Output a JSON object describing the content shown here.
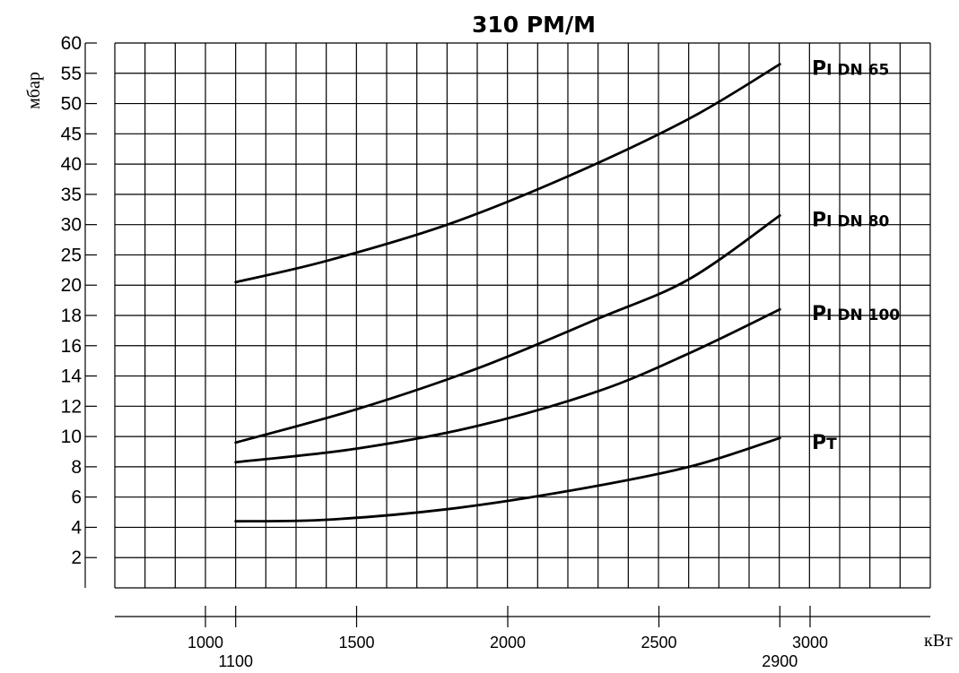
{
  "chart_data": {
    "type": "line",
    "title": "310 PM/M",
    "ylabel": "мбар",
    "xlabel": "кВт",
    "y_ticks_upper": [
      "60",
      "55",
      "50",
      "45",
      "40",
      "35",
      "30",
      "25",
      "20"
    ],
    "y_ticks_lower": [
      "18",
      "16",
      "14",
      "12",
      "10",
      "8",
      "6",
      "4",
      "2"
    ],
    "x_ticks": [
      "1000",
      "1500",
      "2000",
      "2500",
      "3000"
    ],
    "x_range_labels": [
      "1100",
      "2900"
    ],
    "x_range": [
      1100,
      2900
    ],
    "series": [
      {
        "name_main": "P",
        "name_sub": "I DN 65",
        "scale": "upper",
        "x": [
          1100,
          1400,
          1800,
          2200,
          2600,
          2900
        ],
        "y": [
          20.5,
          24,
          30,
          38,
          47.5,
          56.5
        ]
      },
      {
        "name_main": "P",
        "name_sub": "I DN 80",
        "scale": "mixed",
        "x": [
          1100,
          1500,
          1900,
          2300,
          2600,
          2900
        ],
        "y": [
          9.6,
          11.8,
          14.5,
          17.8,
          21,
          31.5
        ]
      },
      {
        "name_main": "P",
        "name_sub": "I DN 100",
        "scale": "lower",
        "x": [
          1100,
          1500,
          1900,
          2300,
          2600,
          2900
        ],
        "y": [
          8.3,
          9.2,
          10.7,
          13,
          15.5,
          18.4
        ]
      },
      {
        "name_main": "P",
        "name_sub": "T",
        "scale": "lower",
        "x": [
          1100,
          1400,
          1800,
          2200,
          2600,
          2900
        ],
        "y": [
          4.4,
          4.5,
          5.2,
          6.4,
          8,
          9.9
        ]
      }
    ]
  }
}
